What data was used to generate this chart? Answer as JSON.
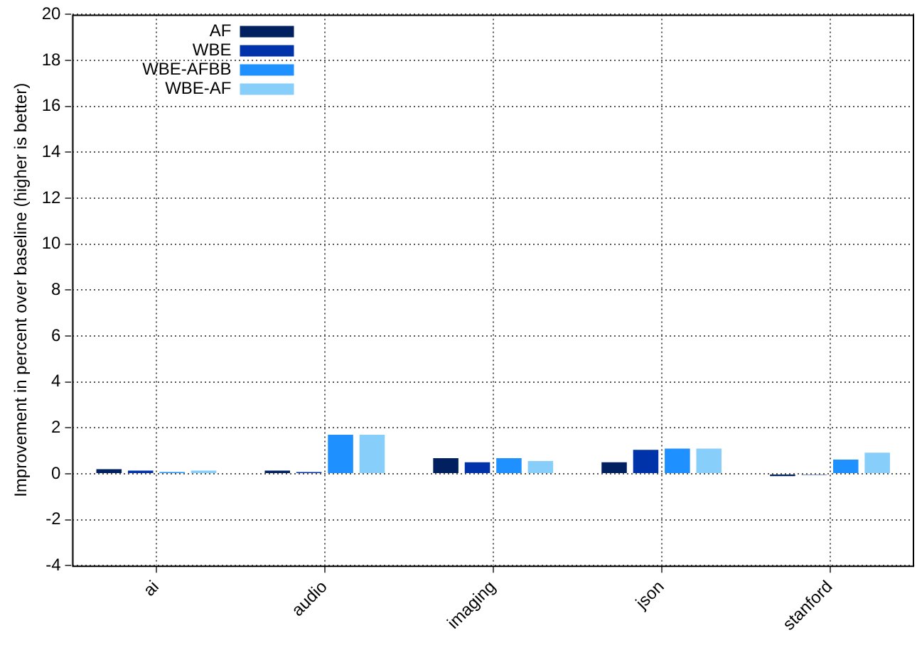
{
  "chart_data": {
    "type": "bar",
    "ylabel": "Improvement in percent over baseline (higher is better)",
    "categories": [
      "ai",
      "audio",
      "imaging",
      "json",
      "stanford"
    ],
    "series": [
      {
        "name": "AF",
        "color": "#00205f",
        "values": [
          0.2,
          0.14,
          0.68,
          0.5,
          -0.1
        ]
      },
      {
        "name": "WBE",
        "color": "#0033aa",
        "values": [
          0.14,
          0.08,
          0.5,
          1.04,
          -0.05
        ]
      },
      {
        "name": "WBE-AFBB",
        "color": "#1e90ff",
        "values": [
          0.08,
          1.7,
          0.68,
          1.1,
          0.62
        ]
      },
      {
        "name": "WBE-AF",
        "color": "#87cefa",
        "values": [
          0.14,
          1.7,
          0.56,
          1.1,
          0.92
        ]
      }
    ],
    "ylim": [
      -4,
      20
    ],
    "yticks": [
      -4,
      -2,
      0,
      2,
      4,
      6,
      8,
      10,
      12,
      14,
      16,
      18,
      20
    ],
    "grid": true,
    "legend": "top left"
  }
}
